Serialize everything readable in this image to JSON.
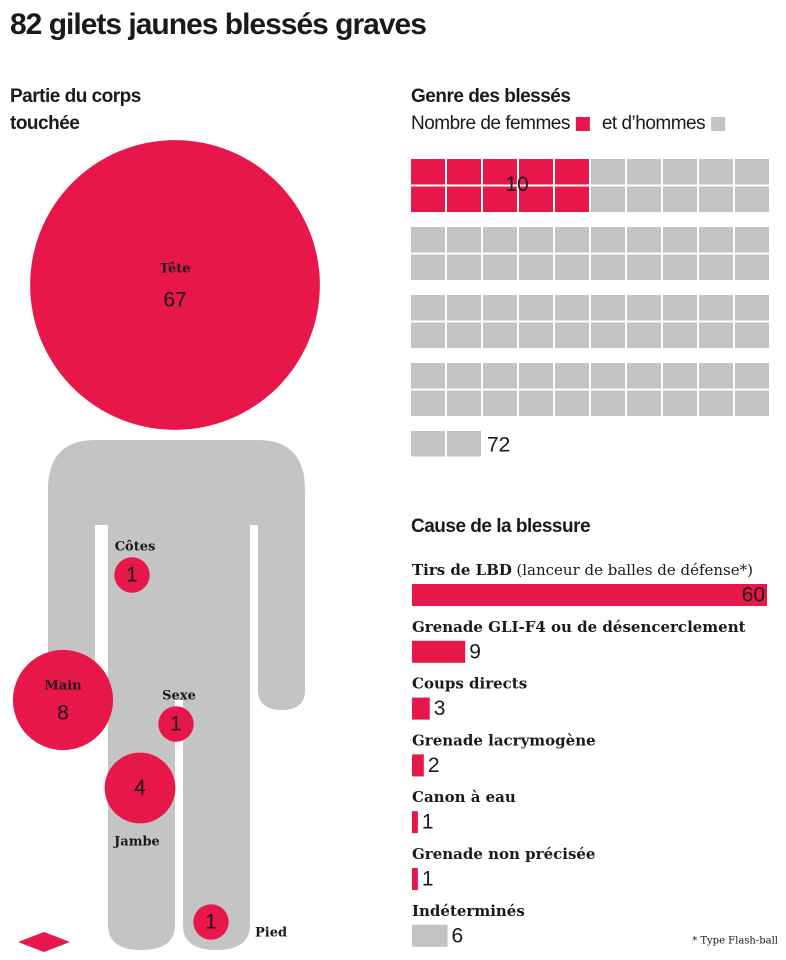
{
  "title": "82 gilets jaunes blessés graves",
  "footnote": "* Type Flash-ball",
  "chart_data": [
    {
      "type": "bubble",
      "title": [
        "Partie du corps",
        "touchée"
      ],
      "categories": [
        "Tête",
        "Côtes",
        "Main",
        "Sexe",
        "Jambe",
        "Pied"
      ],
      "values": [
        67,
        1,
        8,
        1,
        4,
        1
      ],
      "color": "#e8174a"
    },
    {
      "type": "waffle",
      "title": "Genre des blessés",
      "series": [
        {
          "name": "Nombre de femmes",
          "color": "#e8174a",
          "value": 10
        },
        {
          "name": "et d’hommes",
          "color": "#c3c3c3",
          "value": 72
        }
      ]
    },
    {
      "type": "bar",
      "title": "Cause de la blessure",
      "categories": [
        "Tirs de LBD",
        "Grenade GLI-F4 ou de désencerclement",
        "Coups directs",
        "Grenade lacrymogène",
        "Canon à eau",
        "Grenade non précisée",
        "Indéterminés"
      ],
      "category_details": [
        "(lanceur de balles de défense*)",
        null,
        null,
        null,
        null,
        null,
        null
      ],
      "values": [
        60,
        9,
        3,
        2,
        1,
        1,
        6
      ],
      "colors": [
        "#e8174a",
        "#e8174a",
        "#e8174a",
        "#e8174a",
        "#e8174a",
        "#e8174a",
        "#c3c3c3"
      ]
    }
  ]
}
